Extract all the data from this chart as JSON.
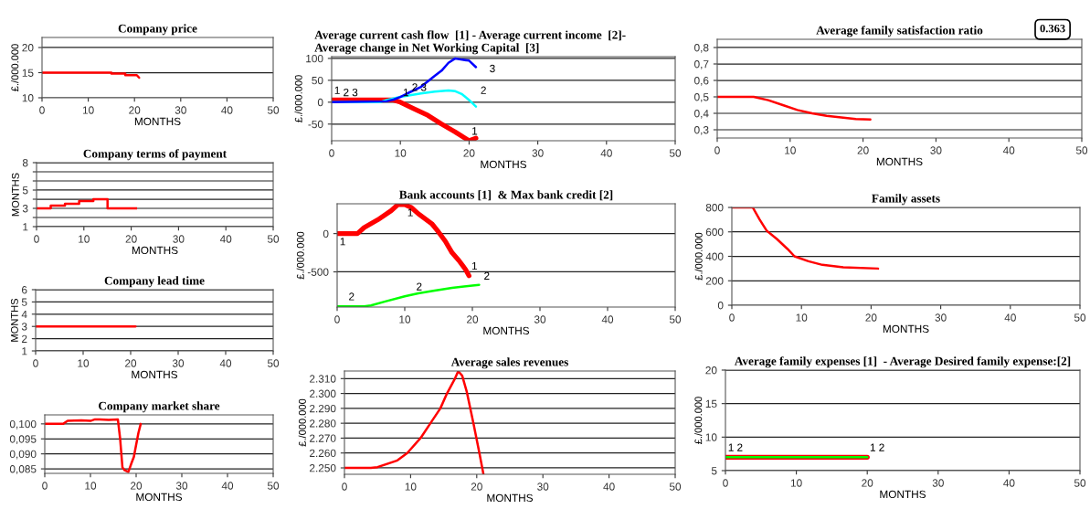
{
  "chart_data": [
    {
      "type": "line",
      "title": "Company price",
      "xlabel": "MONTHS",
      "ylabel": "£./000.000",
      "xlim": [
        0,
        50
      ],
      "ylim": [
        10,
        22
      ],
      "xticks": [
        0,
        10,
        20,
        30,
        40,
        50
      ],
      "yticks": [
        10,
        15,
        20
      ],
      "grid": "y",
      "series": [
        {
          "color": "#ff0000",
          "x": [
            0,
            15,
            15,
            18,
            18,
            20.5,
            21
          ],
          "values": [
            15,
            15,
            14.8,
            14.8,
            14.5,
            14.5,
            14
          ]
        }
      ]
    },
    {
      "type": "step",
      "title": "Company terms of payment",
      "xlabel": "MONTHS",
      "ylabel": "MONTHS",
      "xlim": [
        0,
        50
      ],
      "ylim": [
        1,
        8
      ],
      "xticks": [
        0,
        10,
        20,
        30,
        40,
        50
      ],
      "yticks": [
        1,
        {
          "value": 2,
          "label": null
        },
        3,
        {
          "value": 4,
          "label": null
        },
        5,
        {
          "value": 6,
          "label": null
        },
        {
          "value": 7,
          "label": null
        },
        8
      ],
      "grid": "y",
      "series": [
        {
          "color": "#ff0000",
          "x": [
            0,
            3,
            6,
            9,
            12,
            15,
            21
          ],
          "values": [
            3,
            3.3,
            3.5,
            3.8,
            4,
            3,
            3
          ]
        }
      ]
    },
    {
      "type": "line",
      "title": "Company lead time",
      "xlabel": "MONTHS",
      "ylabel": "MONTHS",
      "xlim": [
        0,
        50
      ],
      "ylim": [
        1,
        6
      ],
      "xticks": [
        0,
        10,
        20,
        30,
        40,
        50
      ],
      "yticks": [
        1,
        2,
        3,
        4,
        5,
        6
      ],
      "grid": "y",
      "series": [
        {
          "color": "#ff0000",
          "x": [
            0,
            21
          ],
          "values": [
            3,
            3
          ]
        }
      ]
    },
    {
      "type": "line",
      "title": "Company market share",
      "xlabel": "MONTHS",
      "xlim": [
        0,
        50
      ],
      "ylim": [
        0.0835,
        0.103
      ],
      "xticks": [
        0,
        10,
        20,
        30,
        40,
        50
      ],
      "yticks": [
        {
          "value": 0.085,
          "label": "0,085"
        },
        {
          "value": 0.09,
          "label": "0,090"
        },
        {
          "value": 0.095,
          "label": "0,095"
        },
        {
          "value": 0.1,
          "label": "0,100"
        }
      ],
      "grid": "y",
      "series": [
        {
          "color": "#ff0000",
          "x": [
            0,
            4,
            5,
            8,
            10,
            11,
            12,
            14,
            16,
            16.5,
            17,
            17.5,
            18.3,
            19,
            19.5,
            20,
            20.5,
            21
          ],
          "values": [
            0.1,
            0.1,
            0.101,
            0.1012,
            0.101,
            0.1015,
            0.1015,
            0.1013,
            0.1015,
            0.095,
            0.0855,
            0.0845,
            0.084,
            0.087,
            0.089,
            0.093,
            0.097,
            0.1
          ]
        }
      ]
    },
    {
      "type": "line",
      "title": "Average current cash flow  [1] - Average current income  [2]-\nAverage change in Net Working Capital  [3]",
      "xlabel": "MONTHS",
      "ylabel": "£./000.000",
      "xlim": [
        0,
        50
      ],
      "ylim": [
        -88,
        104
      ],
      "xticks": [
        0,
        10,
        20,
        30,
        40,
        50
      ],
      "yticks": [
        -50,
        0,
        50,
        100
      ],
      "grid": "y",
      "series": [
        {
          "name": "1",
          "color": "#ff0000",
          "x": [
            0,
            9,
            10,
            12,
            14,
            16,
            18,
            20,
            21
          ],
          "values": [
            5,
            5,
            0,
            -15,
            -30,
            -50,
            -68,
            -88,
            -82
          ]
        },
        {
          "name": "2",
          "color": "#00ffff",
          "x": [
            0,
            7,
            8,
            10,
            13,
            15,
            17,
            18,
            19,
            20,
            21
          ],
          "values": [
            0,
            0,
            5,
            12,
            20,
            24,
            27,
            25,
            18,
            5,
            -10
          ]
        },
        {
          "name": "3",
          "color": "#0000ff",
          "x": [
            0,
            8,
            9,
            10,
            11,
            13,
            15,
            16,
            17,
            18,
            19,
            20,
            21
          ],
          "values": [
            0,
            2,
            6,
            12,
            20,
            35,
            60,
            72,
            90,
            100,
            97,
            95,
            80
          ]
        }
      ]
    },
    {
      "type": "line",
      "title": "Bank accounts [1]  & Max bank credit [2]",
      "xlabel": "MONTHS",
      "ylabel": "£./000.000",
      "xlim": [
        0,
        50
      ],
      "ylim": [
        -960,
        390
      ],
      "xticks": [
        0,
        10,
        20,
        30,
        40,
        50
      ],
      "yticks": [
        -500,
        0
      ],
      "grid": "y",
      "series": [
        {
          "name": "1",
          "color": "#ff0000",
          "x": [
            0,
            3,
            4,
            6,
            8,
            9,
            10,
            11,
            12,
            14,
            15,
            16,
            17,
            18,
            19,
            19.5
          ],
          "values": [
            0,
            0,
            80,
            180,
            300,
            380,
            380,
            340,
            260,
            130,
            20,
            -100,
            -250,
            -350,
            -470,
            -550
          ]
        },
        {
          "name": "2",
          "color": "#00ff00",
          "x": [
            0,
            4,
            5,
            7,
            10,
            12,
            14,
            17,
            20,
            21
          ],
          "values": [
            -950,
            -950,
            -940,
            -890,
            -820,
            -780,
            -750,
            -710,
            -680,
            -670
          ]
        }
      ]
    },
    {
      "type": "line",
      "title": "Average sales revenues",
      "xlabel": "MONTHS",
      "ylabel": "£./000.000",
      "xlim": [
        0,
        50
      ],
      "ylim": [
        2245.7,
        2315.1
      ],
      "xticks": [
        0,
        10,
        20,
        30,
        40,
        50
      ],
      "yticks": [
        {
          "value": 2250,
          "label": "2.250"
        },
        {
          "value": 2260,
          "label": "2.260"
        },
        {
          "value": 2270,
          "label": "2.270"
        },
        {
          "value": 2280,
          "label": "2.280"
        },
        {
          "value": 2290,
          "label": "2.290"
        },
        {
          "value": 2300,
          "label": "2.300"
        },
        {
          "value": 2310,
          "label": "2.310"
        }
      ],
      "grid": "y",
      "series": [
        {
          "color": "#ff0000",
          "x": [
            0,
            4,
            5,
            8,
            9.5,
            11.5,
            13,
            14.5,
            15.5,
            16.7,
            17.2,
            17.8,
            18.5,
            19.5,
            20.4,
            21
          ],
          "values": [
            2250,
            2250,
            2250.5,
            2255,
            2260,
            2270,
            2280,
            2290,
            2300,
            2310,
            2315,
            2312,
            2301,
            2280,
            2260,
            2246
          ]
        }
      ]
    },
    {
      "type": "line",
      "title": "Average family satisfaction ratio",
      "annotations": [
        "0.363"
      ],
      "xlabel": "MONTHS",
      "xlim": [
        0,
        50
      ],
      "ylim": [
        0.25,
        0.85
      ],
      "xticks": [
        0,
        10,
        20,
        30,
        40,
        50
      ],
      "yticks": [
        {
          "value": 0.3,
          "label": "0,3"
        },
        {
          "value": 0.4,
          "label": "0,4"
        },
        {
          "value": 0.5,
          "label": "0,5"
        },
        {
          "value": 0.6,
          "label": "0,6"
        },
        {
          "value": 0.7,
          "label": "0,7"
        },
        {
          "value": 0.8,
          "label": "0,8"
        }
      ],
      "grid": "y",
      "series": [
        {
          "color": "#ff0000",
          "x": [
            0,
            5,
            7,
            9,
            11,
            13,
            15,
            17,
            19,
            21
          ],
          "values": [
            0.5,
            0.5,
            0.48,
            0.45,
            0.42,
            0.4,
            0.385,
            0.375,
            0.365,
            0.363
          ]
        }
      ]
    },
    {
      "type": "line",
      "title": "Family assets",
      "xlabel": "MONTHS",
      "ylabel": "£./000.000",
      "xlim": [
        0,
        50
      ],
      "ylim": [
        0,
        800
      ],
      "xticks": [
        0,
        10,
        20,
        30,
        40,
        50
      ],
      "yticks": [
        0,
        200,
        400,
        600,
        800
      ],
      "grid": "y",
      "series": [
        {
          "color": "#ff0000",
          "x": [
            0,
            3,
            4,
            5,
            6.5,
            8,
            9,
            11,
            13,
            16,
            21
          ],
          "values": [
            800,
            800,
            700,
            610,
            540,
            460,
            400,
            360,
            330,
            310,
            300
          ]
        }
      ]
    },
    {
      "type": "line",
      "title": "Average family expenses [1]  - Average Desired family expense:[2]",
      "xlabel": "MONTHS",
      "ylabel": "£./000.000",
      "xlim": [
        0,
        50
      ],
      "ylim": [
        5,
        20
      ],
      "xticks": [
        0,
        10,
        20,
        30,
        40,
        50
      ],
      "yticks": [
        5,
        10,
        15,
        20
      ],
      "grid": "y",
      "series": [
        {
          "name": "1",
          "color": "#ff0000",
          "x": [
            0,
            20
          ],
          "values": [
            7,
            7
          ]
        },
        {
          "name": "2",
          "color": "#00ff00",
          "x": [
            0,
            20
          ],
          "values": [
            7,
            7
          ]
        }
      ]
    }
  ]
}
